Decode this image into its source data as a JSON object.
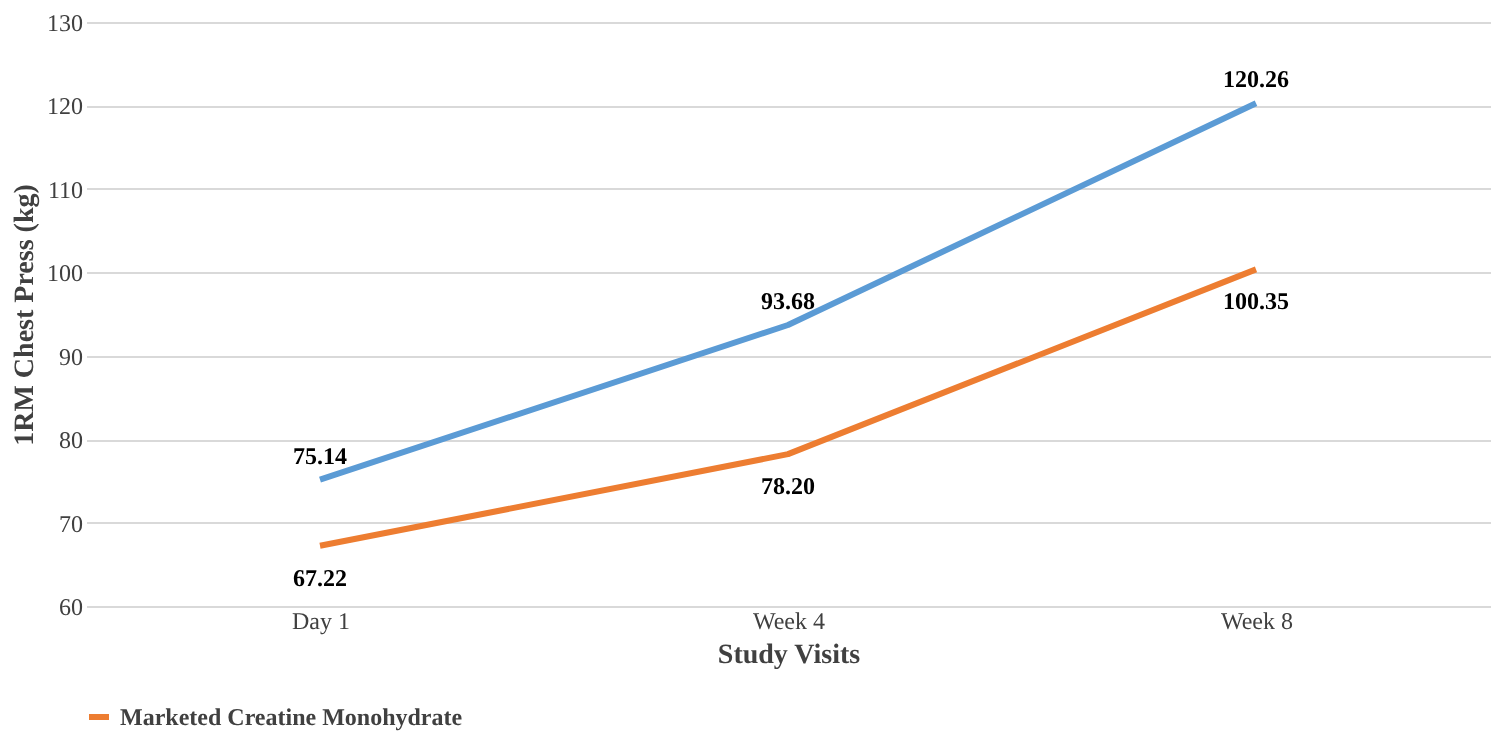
{
  "chart_data": {
    "type": "line",
    "xlabel": "Study Visits",
    "ylabel": "1RM Chest Press (kg)",
    "categories": [
      "Day 1",
      "Week 4",
      "Week 8"
    ],
    "series": [
      {
        "color": "#5b9bd5",
        "values": [
          75.14,
          93.68,
          120.26
        ],
        "value_labels": [
          "75.14",
          "93.68",
          "120.26"
        ]
      },
      {
        "name": "Marketed Creatine Monohydrate",
        "color": "#ed7d31",
        "values": [
          67.22,
          78.2,
          100.35
        ],
        "value_labels": [
          "67.22",
          "78.20",
          "100.35"
        ]
      }
    ],
    "ylim": [
      60,
      130
    ],
    "yticks": [
      60,
      70,
      80,
      90,
      100,
      110,
      120,
      130
    ],
    "grid": "y",
    "legend": "bottom",
    "marker": "none",
    "line_style": "solid"
  }
}
